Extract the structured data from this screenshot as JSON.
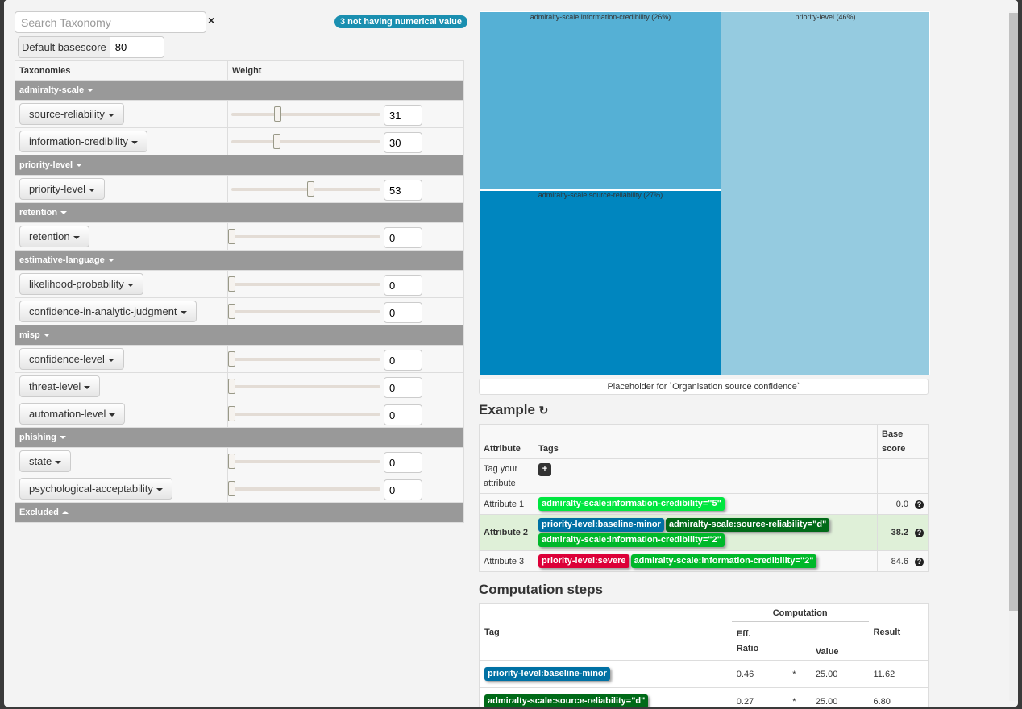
{
  "search": {
    "placeholder": "Search Taxonomy",
    "clear": "×"
  },
  "badge": "3 not having numerical value",
  "basescore": {
    "label": "Default basescore",
    "value": "80"
  },
  "taxonomy_table": {
    "headers": [
      "Taxonomies",
      "Weight"
    ],
    "groups": [
      {
        "name": "admiralty-scale",
        "items": [
          {
            "name": "source-reliability",
            "weight": 31
          },
          {
            "name": "information-credibility",
            "weight": 30
          }
        ]
      },
      {
        "name": "priority-level",
        "items": [
          {
            "name": "priority-level",
            "weight": 53
          }
        ]
      },
      {
        "name": "retention",
        "items": [
          {
            "name": "retention",
            "weight": 0
          }
        ]
      },
      {
        "name": "estimative-language",
        "items": [
          {
            "name": "likelihood-probability",
            "weight": 0
          },
          {
            "name": "confidence-in-analytic-judgment",
            "weight": 0
          }
        ]
      },
      {
        "name": "misp",
        "items": [
          {
            "name": "confidence-level",
            "weight": 0
          },
          {
            "name": "threat-level",
            "weight": 0
          },
          {
            "name": "automation-level",
            "weight": 0
          }
        ]
      },
      {
        "name": "phishing",
        "items": [
          {
            "name": "state",
            "weight": 0
          },
          {
            "name": "psychological-acceptability",
            "weight": 0
          }
        ]
      }
    ],
    "excluded": "Excluded"
  },
  "treemap": [
    {
      "label": "admiralty-scale:information-credibility (26%)",
      "color": "#55b0d5"
    },
    {
      "label": "admiralty-scale:source-reliability (27%)",
      "color": "#0086bf"
    },
    {
      "label": "priority-level (46%)",
      "color": "#95cbe0"
    }
  ],
  "placeholder": "Placeholder for `Organisation source confidence`",
  "example": {
    "title": "Example",
    "headers": [
      "Attribute",
      "Tags",
      "Base score"
    ],
    "tag_prompt": "Tag your attribute",
    "add": "+",
    "rows": [
      {
        "attr": "Attribute 1",
        "score": "0.0",
        "tags": [
          {
            "t": "admiralty-scale:information-credibility=\"5\"",
            "c": "#00e640"
          }
        ]
      },
      {
        "attr": "Attribute 2",
        "score": "38.2",
        "highlight": true,
        "tags": [
          {
            "t": "priority-level:baseline-minor",
            "c": "#0071a4"
          },
          {
            "t": "admiralty-scale:source-reliability=\"d\"",
            "c": "#006a18"
          },
          {
            "t": "admiralty-scale:information-credibility=\"2\"",
            "c": "#00b82a"
          }
        ]
      },
      {
        "attr": "Attribute 3",
        "score": "84.6",
        "tags": [
          {
            "t": "priority-level:severe",
            "c": "#dc0038"
          },
          {
            "t": "admiralty-scale:information-credibility=\"2\"",
            "c": "#00b82a"
          }
        ]
      }
    ]
  },
  "computation": {
    "title": "Computation steps",
    "headers": {
      "tag": "Tag",
      "computation": "Computation",
      "eff": "Eff.",
      "ratio": "Ratio",
      "value": "Value",
      "result": "Result"
    },
    "rows": [
      {
        "tag": "priority-level:baseline-minor",
        "c": "#0071a4",
        "ratio": "0.46",
        "op": "*",
        "value": "25.00",
        "result": "11.62"
      },
      {
        "tag": "admiralty-scale:source-reliability=\"d\"",
        "c": "#006a18",
        "ratio": "0.27",
        "op": "*",
        "value": "25.00",
        "result": "6.80"
      }
    ]
  }
}
